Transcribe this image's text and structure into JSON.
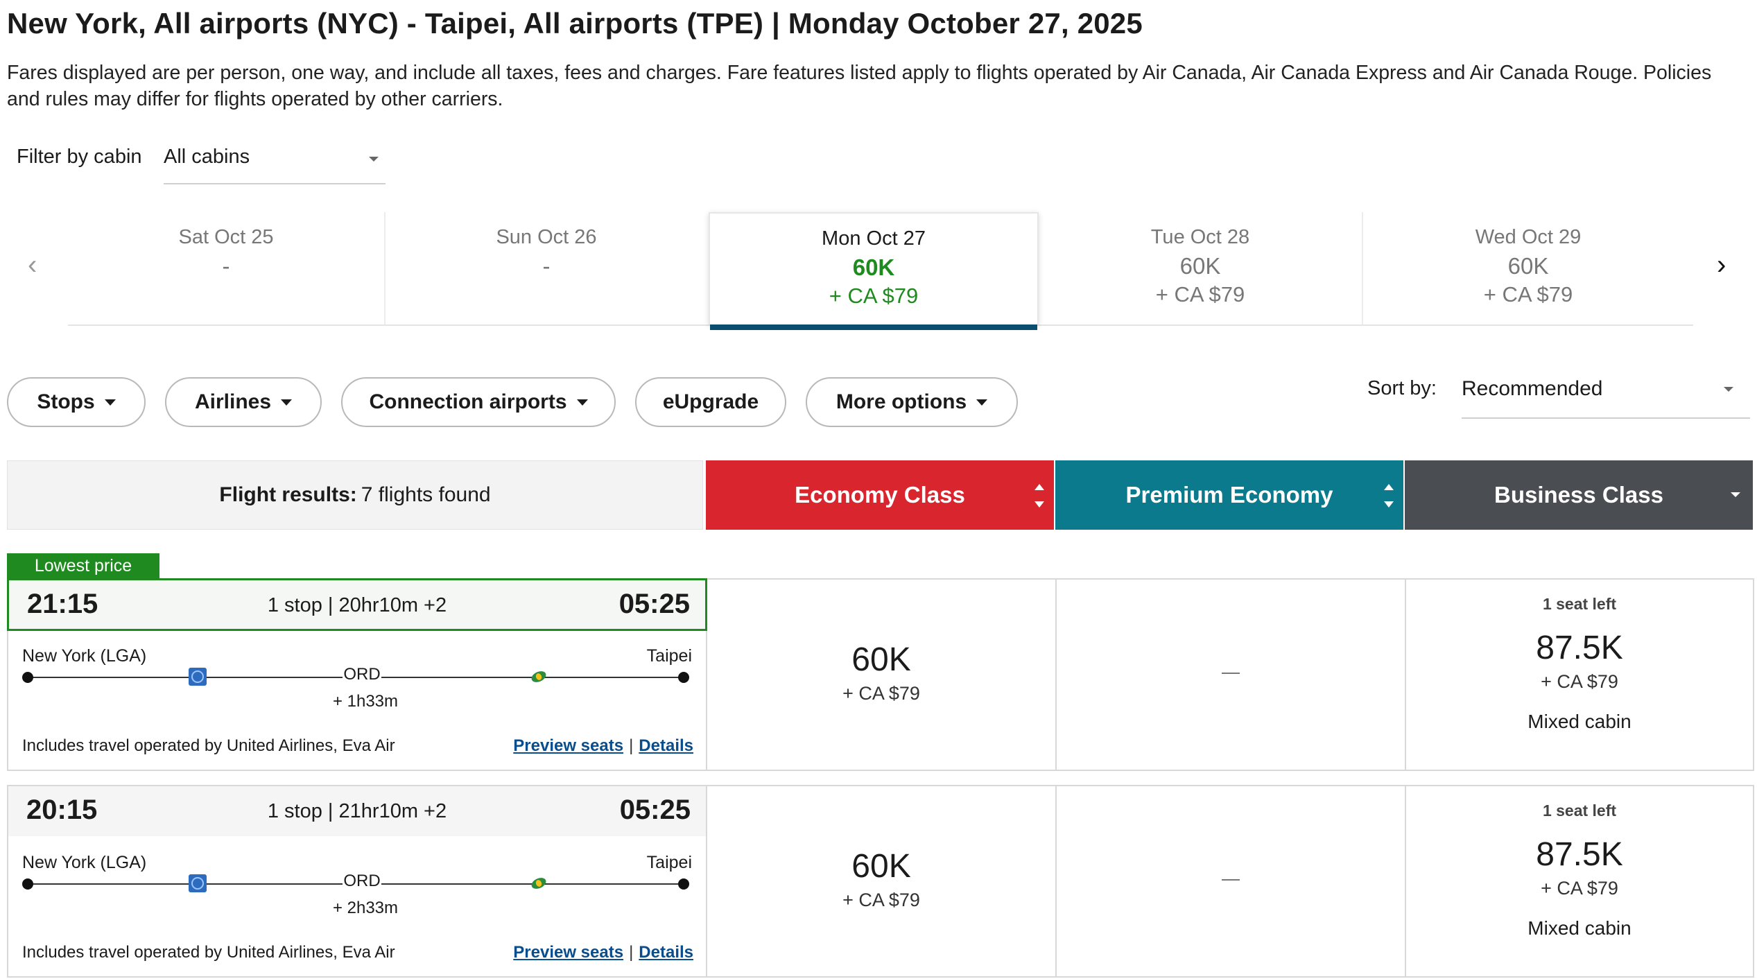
{
  "header": {
    "title": "New York, All airports (NYC) - Taipei, All airports (TPE)  |  Monday October 27, 2025",
    "note": "Fares displayed are per person, one way, and include all taxes, fees and charges. Fare features listed apply to flights operated by Air Canada, Air Canada Express and Air Canada Rouge. Policies and rules may differ for flights operated by other carriers."
  },
  "filter": {
    "label": "Filter by cabin",
    "value": "All cabins"
  },
  "dates": [
    {
      "date": "Sat Oct 25",
      "points": "-",
      "cash": ""
    },
    {
      "date": "Sun Oct 26",
      "points": "-",
      "cash": ""
    },
    {
      "date": "Mon Oct 27",
      "points": "60K",
      "cash": "+ CA $79",
      "selected": true
    },
    {
      "date": "Tue Oct 28",
      "points": "60K",
      "cash": "+ CA $79"
    },
    {
      "date": "Wed Oct 29",
      "points": "60K",
      "cash": "+ CA $79"
    }
  ],
  "icons": {
    "prev": "chevron-left-icon",
    "next": "chevron-right-icon"
  },
  "pills": [
    "Stops",
    "Airlines",
    "Connection airports",
    "eUpgrade",
    "More options"
  ],
  "sort": {
    "label": "Sort by:",
    "value": "Recommended"
  },
  "results_header": {
    "label": "Flight results:",
    "count": "7 flights found",
    "economy": "Economy Class",
    "premium": "Premium Economy",
    "business": "Business Class",
    "colors": {
      "economy": "#d9262e",
      "premium": "#0b7a8c",
      "business": "#4a4d52"
    }
  },
  "badge": "Lowest price",
  "flights": [
    {
      "depart": "21:15",
      "summary": "1 stop | 20hr10m +2",
      "arrive": "05:25",
      "origin": "New York (LGA)",
      "destination": "Taipei",
      "connection": "ORD",
      "layover": "+ 1h33m",
      "includes": "Includes travel operated by United Airlines, Eva Air",
      "preview": "Preview seats",
      "details": "Details",
      "link_sep": "|",
      "economy_points": "60K",
      "economy_cash": "+ CA $79",
      "premium": "—",
      "business_seats": "1 seat left",
      "business_points": "87.5K",
      "business_cash": "+ CA $79",
      "business_note": "Mixed cabin"
    },
    {
      "depart": "20:15",
      "summary": "1 stop | 21hr10m +2",
      "arrive": "05:25",
      "origin": "New York (LGA)",
      "destination": "Taipei",
      "connection": "ORD",
      "layover": "+ 2h33m",
      "includes": "Includes travel operated by United Airlines, Eva Air",
      "preview": "Preview seats",
      "details": "Details",
      "link_sep": "|",
      "economy_points": "60K",
      "economy_cash": "+ CA $79",
      "premium": "—",
      "business_seats": "1 seat left",
      "business_points": "87.5K",
      "business_cash": "+ CA $79",
      "business_note": "Mixed cabin"
    }
  ]
}
